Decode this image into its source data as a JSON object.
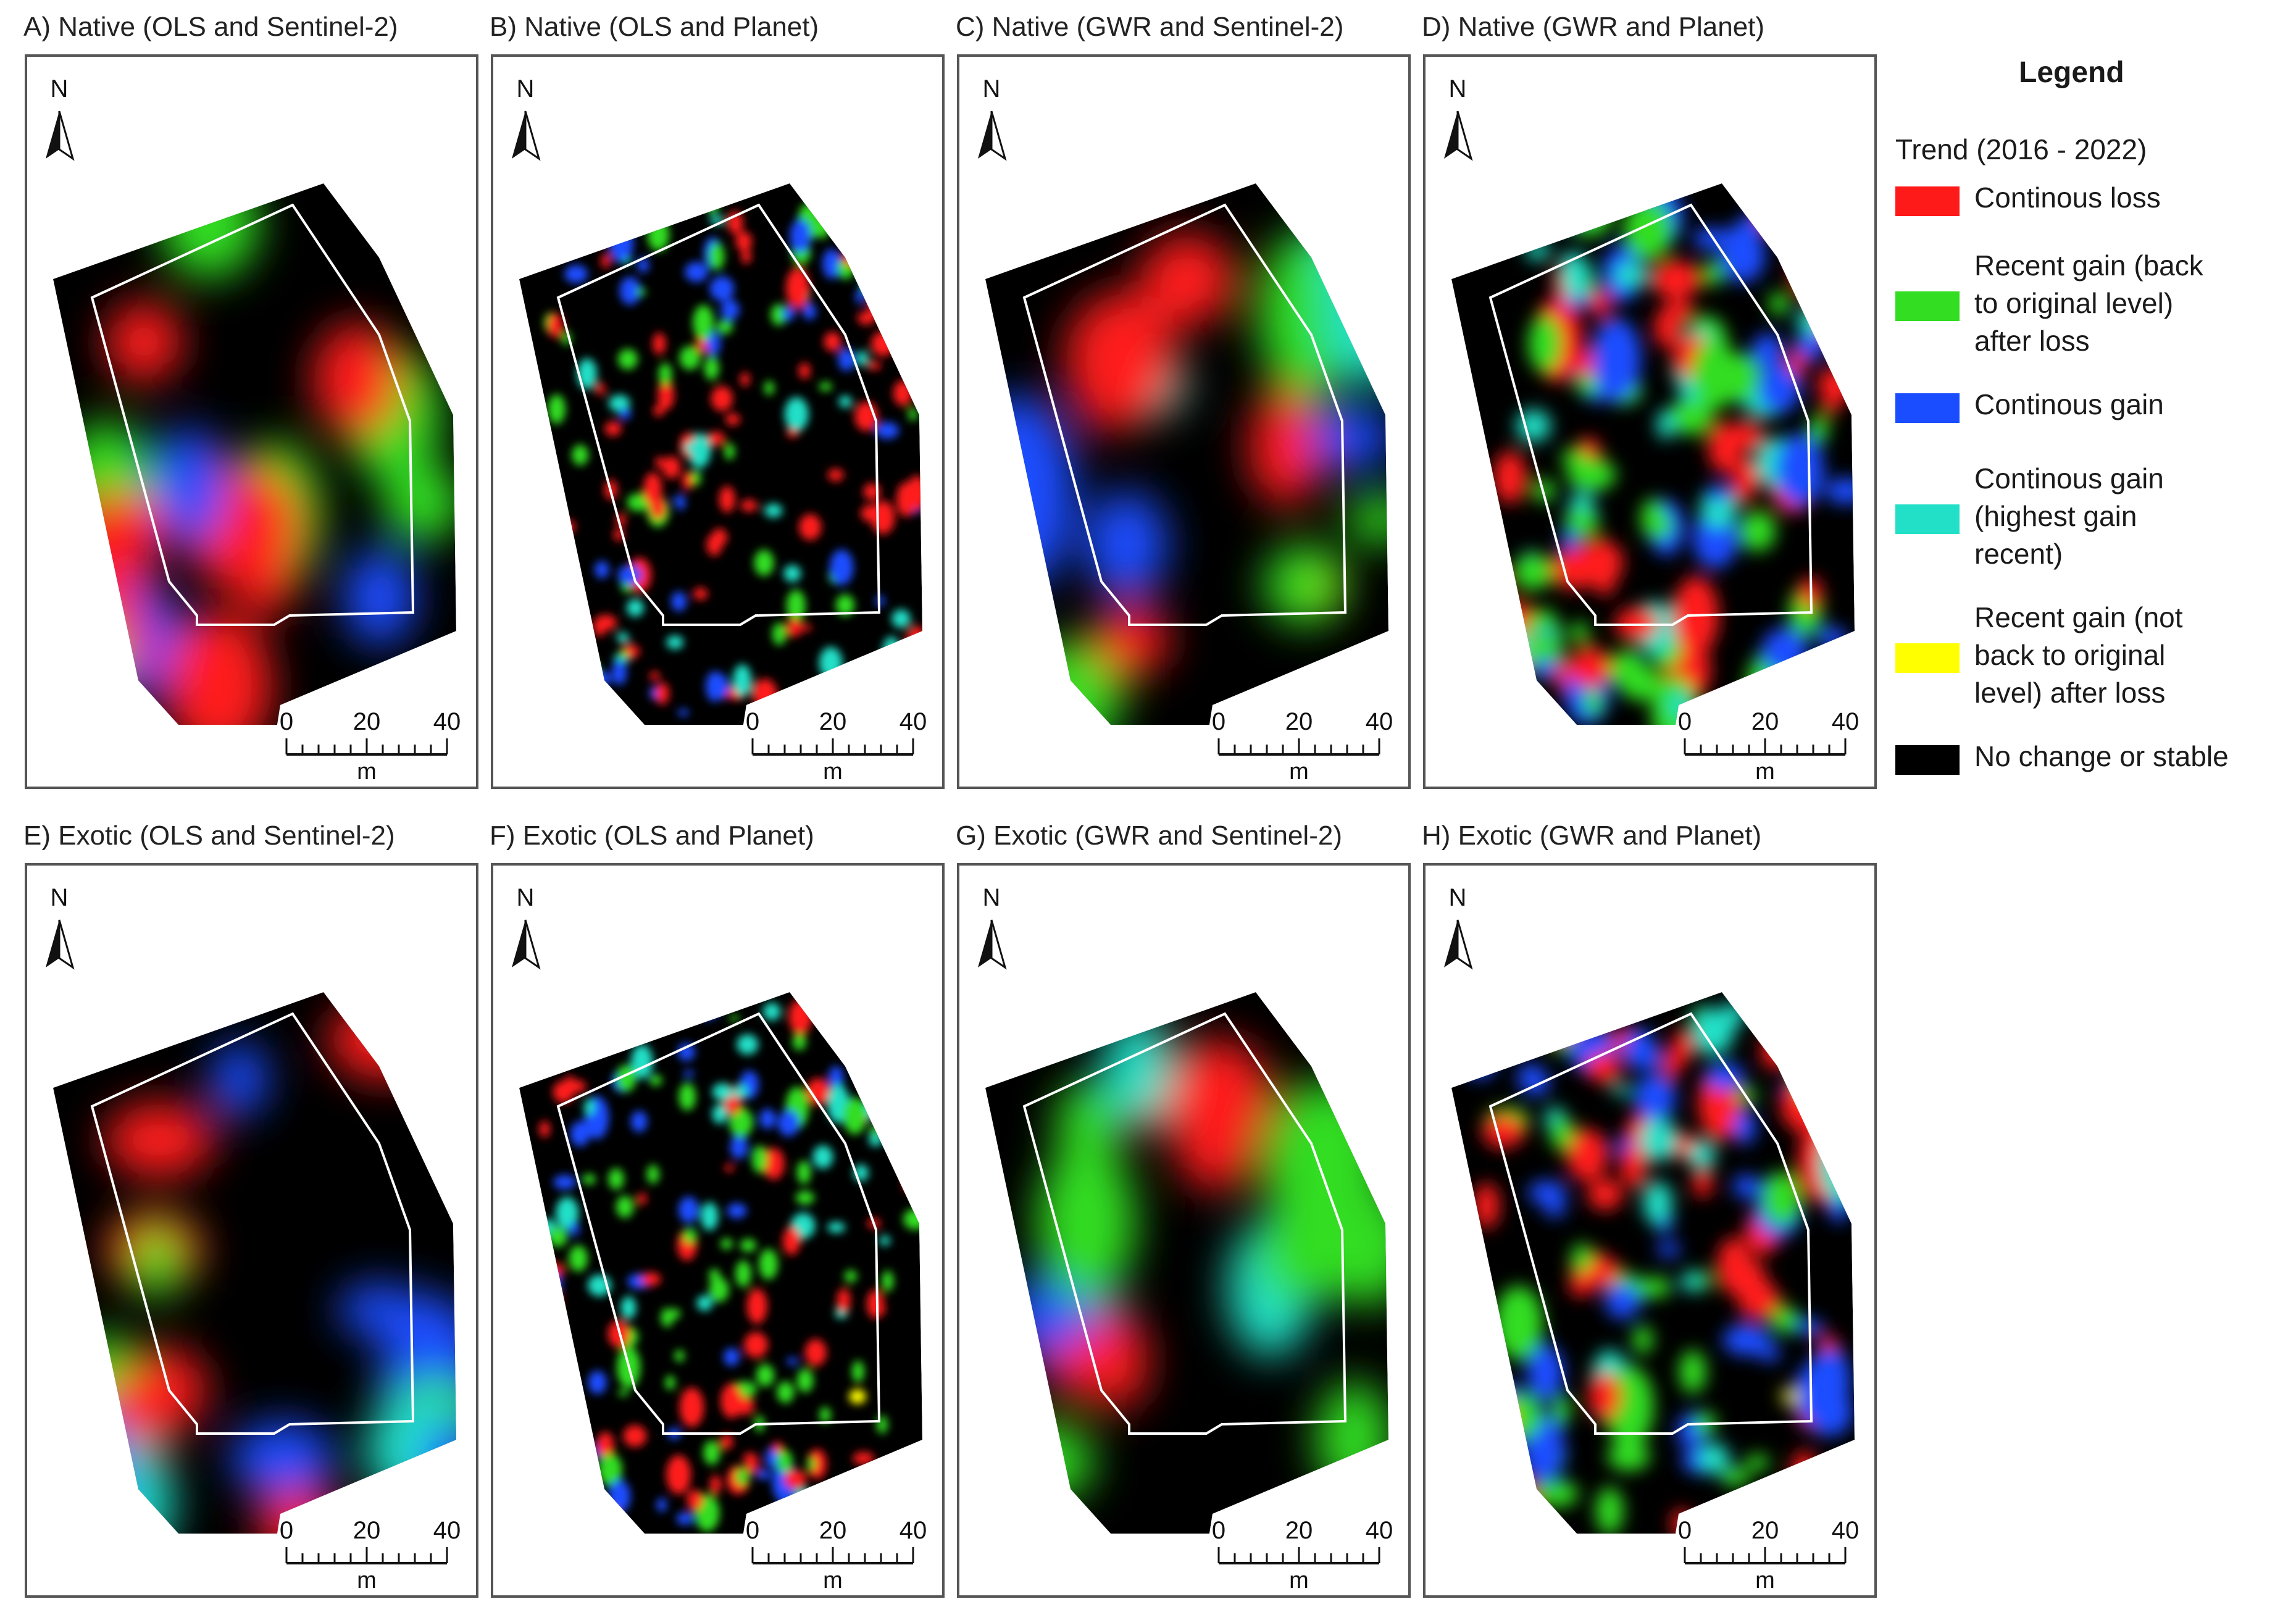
{
  "panels": [
    {
      "id": "A",
      "title": "A) Native (OLS and Sentinel-2)",
      "style": "smooth",
      "seed": 11
    },
    {
      "id": "B",
      "title": "B) Native (OLS and Planet)",
      "style": "speckle",
      "seed": 23
    },
    {
      "id": "C",
      "title": "C) Native (GWR and Sentinel-2)",
      "style": "smooth",
      "seed": 37
    },
    {
      "id": "D",
      "title": "D) Native (GWR and Planet)",
      "style": "clumpy",
      "seed": 41
    },
    {
      "id": "E",
      "title": "E) Exotic (OLS and Sentinel-2)",
      "style": "smooth",
      "seed": 53
    },
    {
      "id": "F",
      "title": "F) Exotic (OLS and Planet)",
      "style": "speckle",
      "seed": 67
    },
    {
      "id": "G",
      "title": "G) Exotic (GWR and Sentinel-2)",
      "style": "smooth",
      "seed": 71
    },
    {
      "id": "H",
      "title": "H) Exotic (GWR and Planet)",
      "style": "clumpy",
      "seed": 89
    }
  ],
  "north_label": "N",
  "scalebar": {
    "ticks": [
      "0",
      "20",
      "40"
    ],
    "unit": "m"
  },
  "legend": {
    "title": "Legend",
    "subtitle": "Trend (2016 - 2022)",
    "items": [
      {
        "label": "Continous loss",
        "color": "#ff1a1a"
      },
      {
        "label": "Recent gain (back\nto original level)\nafter loss",
        "color": "#33dd22"
      },
      {
        "label": "Continous gain",
        "color": "#1a4dff"
      },
      {
        "label": "Continous gain\n(highest gain\nrecent)",
        "color": "#22e0c8"
      },
      {
        "label": "Recent gain (not\nback to original\nlevel) after loss",
        "color": "#ffff00"
      },
      {
        "label": "No change or stable",
        "color": "#000000"
      }
    ]
  }
}
